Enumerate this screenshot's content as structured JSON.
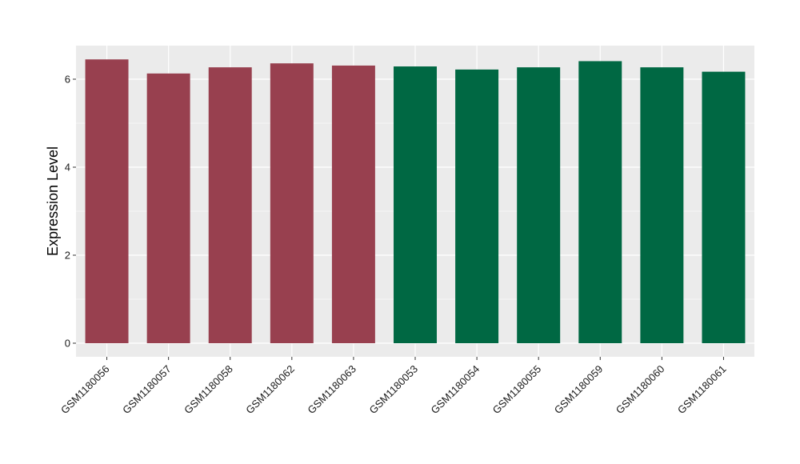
{
  "chart_data": {
    "type": "bar",
    "title": "",
    "xlabel": "",
    "ylabel": "Expression Level",
    "ylim": [
      0,
      6.75
    ],
    "yticks": [
      0,
      2,
      4,
      6
    ],
    "grid": true,
    "legend": "none",
    "categories": [
      "GSM1180056",
      "GSM1180057",
      "GSM1180058",
      "GSM1180062",
      "GSM1180063",
      "GSM1180053",
      "GSM1180054",
      "GSM1180055",
      "GSM1180059",
      "GSM1180060",
      "GSM1180061"
    ],
    "values": [
      6.45,
      6.13,
      6.27,
      6.36,
      6.31,
      6.29,
      6.22,
      6.27,
      6.41,
      6.27,
      6.17
    ],
    "bar_colors": [
      "#98404f",
      "#98404f",
      "#98404f",
      "#98404f",
      "#98404f",
      "#006843",
      "#006843",
      "#006843",
      "#006843",
      "#006843",
      "#006843"
    ],
    "panel_background": "#ebebeb",
    "grid_color": "#ffffff"
  }
}
